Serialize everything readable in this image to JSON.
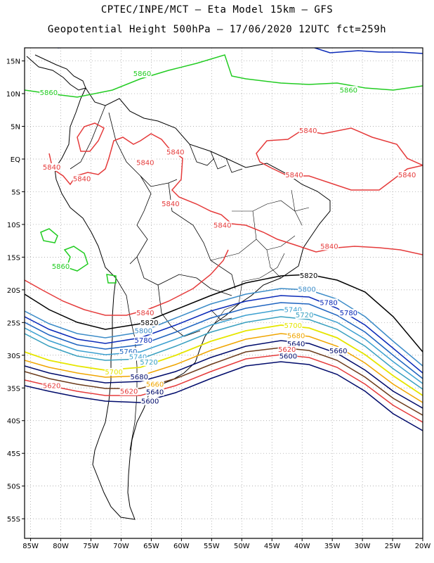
{
  "title": {
    "line1": "CPTEC/INPE/MCT –  Eta Model 15km – GFS",
    "line2": "Geopotential Height 500hPa – 17/06/2020 12UTC fct=259h"
  },
  "axes": {
    "lat_labels": [
      "15N",
      "10N",
      "5N",
      "EQ",
      "5S",
      "10S",
      "15S",
      "20S",
      "25S",
      "30S",
      "35S",
      "40S",
      "45S",
      "50S",
      "55S"
    ],
    "lon_labels": [
      "85W",
      "80W",
      "75W",
      "70W",
      "65W",
      "60W",
      "55W",
      "50W",
      "45W",
      "40W",
      "35W",
      "30W",
      "25W",
      "20W"
    ],
    "lat_range": [
      17,
      -58
    ],
    "lon_range": [
      -86,
      -20
    ],
    "grid": "dotted"
  },
  "contour_levels": [
    {
      "value": "5600",
      "color": "#000b6b"
    },
    {
      "value": "5620",
      "color": "#e53b3b"
    },
    {
      "value": "5640",
      "color": "#6b3b1b"
    },
    {
      "value": "5660",
      "color": "#f0a500"
    },
    {
      "value": "5680",
      "color": "#000b6b"
    },
    {
      "value": "5700",
      "color": "#e6e600"
    },
    {
      "value": "5720",
      "color": "#39a0c0"
    },
    {
      "value": "5740",
      "color": "#3ca0d0"
    },
    {
      "value": "5760",
      "color": "#1e64c0"
    },
    {
      "value": "5780",
      "color": "#0a2ab8"
    },
    {
      "value": "5800",
      "color": "#3c8cc8"
    },
    {
      "value": "5820",
      "color": "#000000"
    },
    {
      "value": "5840",
      "color": "#e53b3b"
    },
    {
      "value": "5860",
      "color": "#22cc22"
    }
  ],
  "contour_labels": [
    {
      "text": "5860",
      "color": "#22cc22",
      "lon": -66.5,
      "lat": 12.8
    },
    {
      "text": "5860",
      "color": "#22cc22",
      "lon": -82.0,
      "lat": 9.9
    },
    {
      "text": "5860",
      "color": "#22cc22",
      "lon": -32.3,
      "lat": 10.3
    },
    {
      "text": "5860",
      "color": "#22cc22",
      "lon": -80.0,
      "lat": -16.7
    },
    {
      "text": "5840",
      "color": "#e53b3b",
      "lon": -81.5,
      "lat": -1.5
    },
    {
      "text": "5840",
      "color": "#e53b3b",
      "lon": -76.5,
      "lat": -3.3
    },
    {
      "text": "5840",
      "color": "#e53b3b",
      "lon": -66.0,
      "lat": -0.8
    },
    {
      "text": "5840",
      "color": "#e53b3b",
      "lon": -61.0,
      "lat": 0.8
    },
    {
      "text": "5840",
      "color": "#e53b3b",
      "lon": -39.0,
      "lat": 4.1
    },
    {
      "text": "5840",
      "color": "#e53b3b",
      "lon": -41.3,
      "lat": -2.7
    },
    {
      "text": "5840",
      "color": "#e53b3b",
      "lon": -22.6,
      "lat": -2.7
    },
    {
      "text": "5840",
      "color": "#e53b3b",
      "lon": -61.8,
      "lat": -7.1
    },
    {
      "text": "5840",
      "color": "#e53b3b",
      "lon": -53.2,
      "lat": -10.4
    },
    {
      "text": "5840",
      "color": "#e53b3b",
      "lon": -35.5,
      "lat": -13.6
    },
    {
      "text": "5840",
      "color": "#e53b3b",
      "lon": -66.0,
      "lat": -23.8
    },
    {
      "text": "5820",
      "color": "#000000",
      "lon": -38.9,
      "lat": -18.1
    },
    {
      "text": "5820",
      "color": "#000000",
      "lon": -65.3,
      "lat": -25.3
    },
    {
      "text": "5800",
      "color": "#3c8cc8",
      "lon": -39.2,
      "lat": -20.2
    },
    {
      "text": "5800",
      "color": "#3c8cc8",
      "lon": -66.3,
      "lat": -26.5
    },
    {
      "text": "5780",
      "color": "#0a2ab8",
      "lon": -35.6,
      "lat": -22.2
    },
    {
      "text": "5780",
      "color": "#0a2ab8",
      "lon": -32.3,
      "lat": -23.8
    },
    {
      "text": "5780",
      "color": "#0a2ab8",
      "lon": -66.3,
      "lat": -28.0
    },
    {
      "text": "5760",
      "color": "#1e64c0",
      "lon": -68.8,
      "lat": -29.7
    },
    {
      "text": "5740",
      "color": "#3ca0d0",
      "lon": -41.5,
      "lat": -23.3
    },
    {
      "text": "5740",
      "color": "#3ca0d0",
      "lon": -67.2,
      "lat": -30.5
    },
    {
      "text": "5720",
      "color": "#39a0c0",
      "lon": -39.6,
      "lat": -24.1
    },
    {
      "text": "5720",
      "color": "#39a0c0",
      "lon": -65.4,
      "lat": -31.3
    },
    {
      "text": "5700",
      "color": "#e6e600",
      "lon": -41.5,
      "lat": -25.7
    },
    {
      "text": "5700",
      "color": "#e6e600",
      "lon": -71.2,
      "lat": -32.8
    },
    {
      "text": "5680",
      "color": "#f0a500",
      "lon": -41.0,
      "lat": -27.3
    },
    {
      "text": "5680",
      "color": "#000b6b",
      "lon": -67.0,
      "lat": -33.6
    },
    {
      "text": "5660",
      "color": "#f0a500",
      "lon": -64.4,
      "lat": -34.7
    },
    {
      "text": "5660",
      "color": "#000b6b",
      "lon": -34.0,
      "lat": -29.6
    },
    {
      "text": "5640",
      "color": "#000b6b",
      "lon": -41.0,
      "lat": -28.5
    },
    {
      "text": "5640",
      "color": "#000b6b",
      "lon": -64.4,
      "lat": -35.9
    },
    {
      "text": "5620",
      "color": "#e53b3b",
      "lon": -42.5,
      "lat": -29.4
    },
    {
      "text": "5620",
      "color": "#e53b3b",
      "lon": -81.5,
      "lat": -34.9
    },
    {
      "text": "5620",
      "color": "#e53b3b",
      "lon": -68.7,
      "lat": -35.8
    },
    {
      "text": "5600",
      "color": "#000b6b",
      "lon": -42.3,
      "lat": -30.4
    },
    {
      "text": "5600",
      "color": "#000b6b",
      "lon": -65.2,
      "lat": -37.3
    }
  ]
}
